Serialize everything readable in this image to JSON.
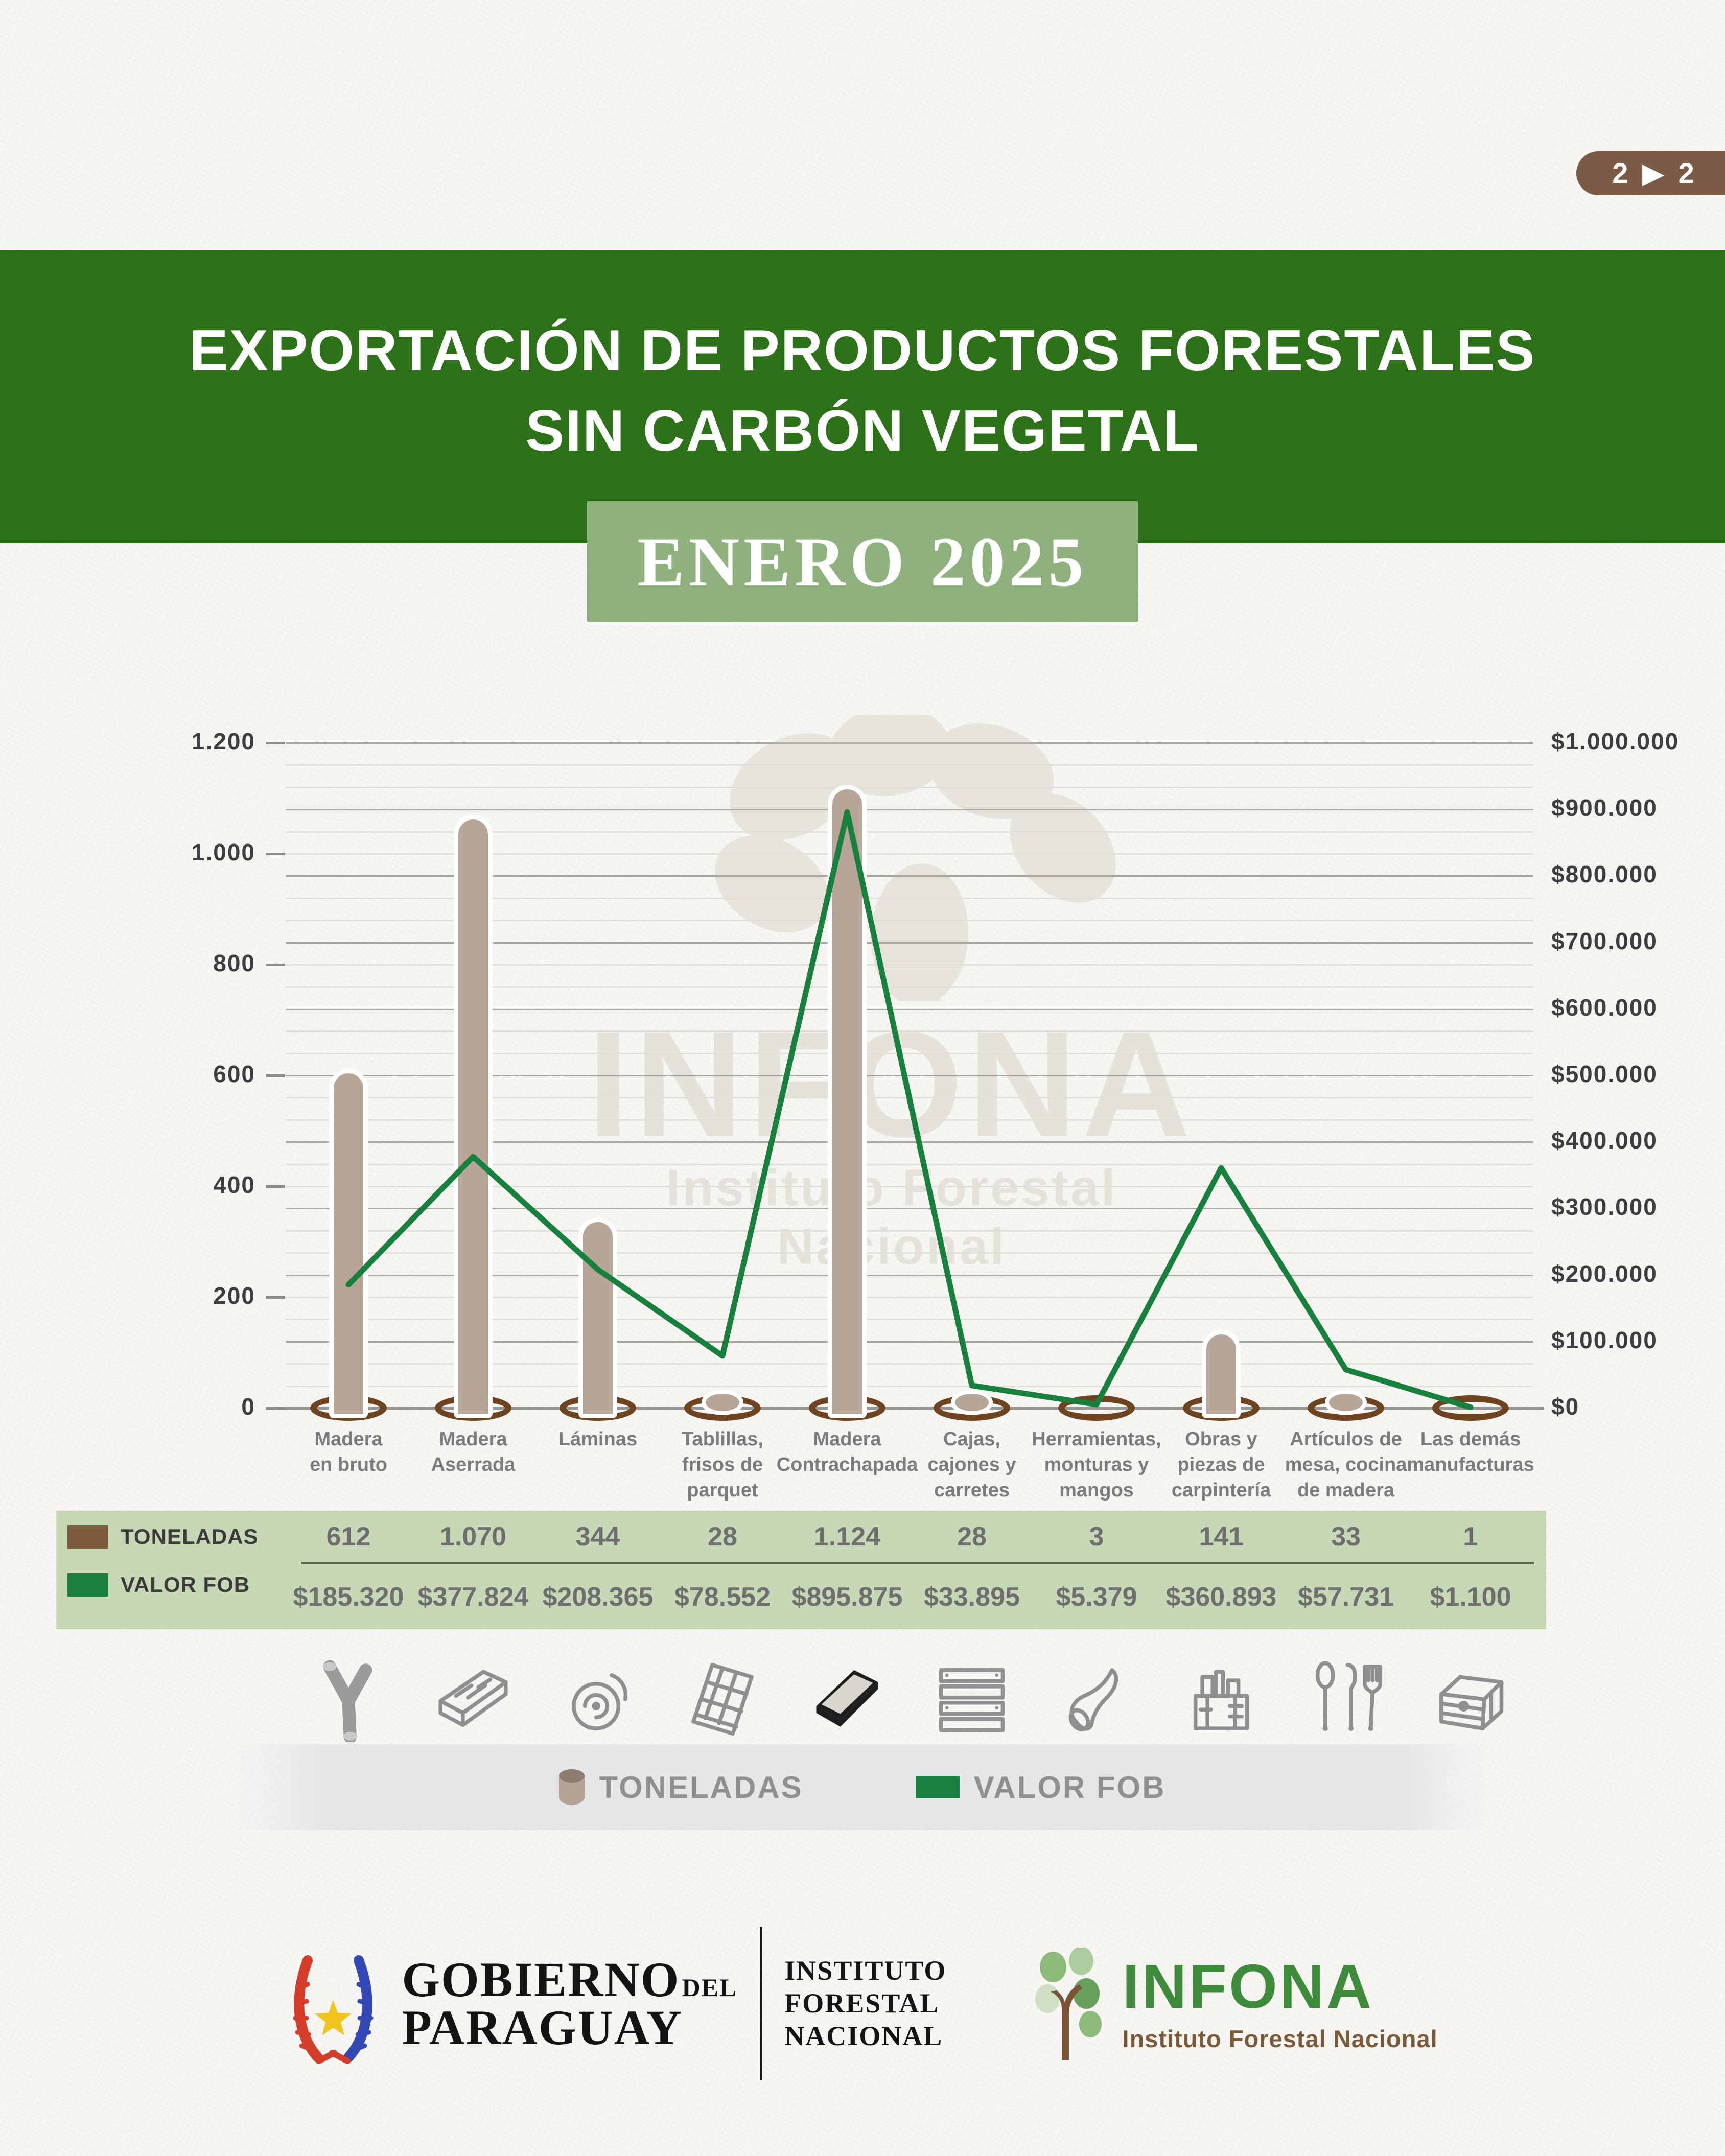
{
  "page_badge": "2 ▶ 2",
  "header": {
    "title_line1": "EXPORTACIÓN DE PRODUCTOS FORESTALES",
    "title_line2": "SIN CARBÓN VEGETAL",
    "period": "ENERO 2025"
  },
  "watermark": {
    "title": "INFONA",
    "subtitle": "Instituto Forestal Nacional"
  },
  "chart_data": {
    "type": "bar+line",
    "categories": [
      "Madera en bruto",
      "Madera Aserrada",
      "Láminas",
      "Tablillas, frisos de parquet",
      "Madera Contrachapada",
      "Cajas, cajones y carretes",
      "Herramientas, monturas y mangos",
      "Obras y piezas de carpintería",
      "Artículos de mesa, cocina de madera",
      "Las demás manufacturas"
    ],
    "categories_display": [
      [
        "Madera",
        "en bruto"
      ],
      [
        "Madera",
        "Aserrada"
      ],
      [
        "Láminas"
      ],
      [
        "Tablillas,",
        "frisos de",
        "parquet"
      ],
      [
        "Madera",
        "Contrachapada"
      ],
      [
        "Cajas,",
        "cajones y",
        "carretes"
      ],
      [
        "Herramientas,",
        "monturas y",
        "mangos"
      ],
      [
        "Obras y",
        "piezas de",
        "carpintería"
      ],
      [
        "Artículos de",
        "mesa, cocina",
        "de madera"
      ],
      [
        "Las demás",
        "manufacturas"
      ]
    ],
    "series": [
      {
        "name": "TONELADAS",
        "type": "bar",
        "axis": "left",
        "color": "#b7a698",
        "values": [
          612,
          1070,
          344,
          28,
          1124,
          28,
          3,
          141,
          33,
          1
        ]
      },
      {
        "name": "VALOR FOB",
        "type": "line",
        "axis": "right",
        "color": "#17803d",
        "values": [
          185320,
          377824,
          208365,
          78552,
          895875,
          33895,
          5379,
          360893,
          57731,
          1100
        ]
      }
    ],
    "left_axis": {
      "max": 1200,
      "min": 0,
      "ticks": [
        "1.200",
        "1.000",
        "800",
        "600",
        "400",
        "200",
        "0"
      ]
    },
    "right_axis": {
      "max": 1000000,
      "min": 0,
      "ticks": [
        "$1.000.000",
        "$900.000",
        "$800.000",
        "$700.000",
        "$600.000",
        "$500.000",
        "$400.000",
        "$300.000",
        "$200.000",
        "$100.000",
        "$0"
      ]
    },
    "grid": "on",
    "legend_position": "bottom"
  },
  "table": {
    "row1_label": "TONELADAS",
    "row2_label": "VALOR FOB",
    "row1_swatch_color": "#7b5b3b",
    "row2_swatch_color": "#1c7f42",
    "toneladas": [
      "612",
      "1.070",
      "344",
      "28",
      "1.124",
      "28",
      "3",
      "141",
      "33",
      "1"
    ],
    "valor_fob": [
      "$185.320",
      "$377.824",
      "$208.365",
      "$78.552",
      "$895.875",
      "$33.895",
      "$5.379",
      "$360.893",
      "$57.731",
      "$1.100"
    ]
  },
  "icons": [
    "raw-log-icon",
    "sawn-lumber-icon",
    "veneer-roll-icon",
    "parquet-tile-icon",
    "plywood-board-icon",
    "wooden-crate-icon",
    "tool-handle-icon",
    "toolbox-icon",
    "kitchen-utensils-icon",
    "wooden-chest-icon"
  ],
  "legend": {
    "toneladas_label": "TONELADAS",
    "valor_fob_label": "VALOR FOB"
  },
  "footer": {
    "gobierno_word1": "GOBIERNO",
    "gobierno_del": "DEL",
    "gobierno_word2": "PARAGUAY",
    "instituto_line1": "INSTITUTO",
    "instituto_line2": "FORESTAL",
    "instituto_line3": "NACIONAL",
    "infona_name": "INFONA",
    "infona_subtitle": "Instituto Forestal Nacional"
  },
  "colors": {
    "banner_green": "#2d7219",
    "period_box_green": "#8fb17d",
    "table_band_green": "#c6d8b6",
    "line_green": "#17803d",
    "bar_taupe": "#b7a698",
    "bar_base_brown": "#6e4320",
    "badge_brown": "#7b5b45",
    "infona_green": "#3f8b3c",
    "infona_brown": "#7b5b3a"
  }
}
